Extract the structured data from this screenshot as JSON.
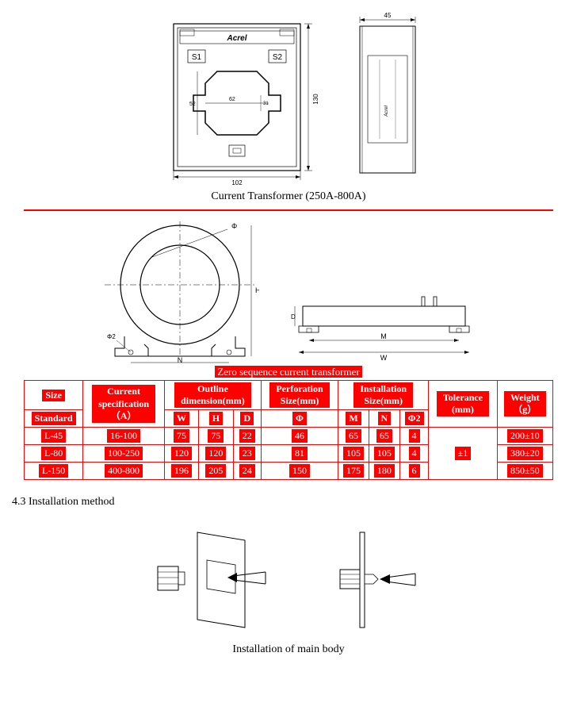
{
  "topDrawing": {
    "brand": "Acrel",
    "s1": "S1",
    "s2": "S2",
    "dim_width_bottom": "102",
    "dim_height_right": "130",
    "inner_w": "62",
    "inner_h": "52",
    "inner_h2": "31",
    "side_width_top": "45"
  },
  "caption1": "Current Transformer (250A-800A)",
  "midDrawing": {
    "label_N": "N",
    "label_H": "H",
    "label_phi": "Φ",
    "label_phi2": "Φ2",
    "label_M": "M",
    "label_W": "W",
    "label_D": "D"
  },
  "caption2": "Zero sequence current transformer",
  "tableHeaders": {
    "size_top": "Size",
    "size_bottom": "Standard",
    "current_top": "Current",
    "current_mid": "specification",
    "current_bottom": "（A）",
    "outline": "Outline",
    "outline2": "dimension(mm)",
    "W": "W",
    "H": "H",
    "D": "D",
    "perf": "Perforation",
    "perf2": "Size(mm)",
    "phi": "Φ",
    "install": "Installation",
    "install2": "Size(mm)",
    "M": "M",
    "N": "N",
    "phi2": "Φ2",
    "tolerance": "Tolerance",
    "tolerance2": "(mm)",
    "weight": "Weight",
    "weight2": "（g）"
  },
  "rows": [
    {
      "std": "L-45",
      "cur": "16-100",
      "W": "75",
      "H": "75",
      "D": "22",
      "phi": "46",
      "M": "65",
      "N": "65",
      "phi2": "4",
      "tol": "±1",
      "wt": "200±10"
    },
    {
      "std": "L-80",
      "cur": "100-250",
      "W": "120",
      "H": "120",
      "D": "23",
      "phi": "81",
      "M": "105",
      "N": "105",
      "phi2": "4",
      "tol": "",
      "wt": "380±20"
    },
    {
      "std": "L-150",
      "cur": "400-800",
      "W": "196",
      "H": "205",
      "D": "24",
      "phi": "150",
      "M": "175",
      "N": "180",
      "phi2": "6",
      "tol": "",
      "wt": "850±50"
    }
  ],
  "section43": "4.3 Installation method",
  "caption3": "Installation of main body",
  "colors": {
    "red": "#ff0000",
    "black": "#000000",
    "gray": "#888888"
  }
}
